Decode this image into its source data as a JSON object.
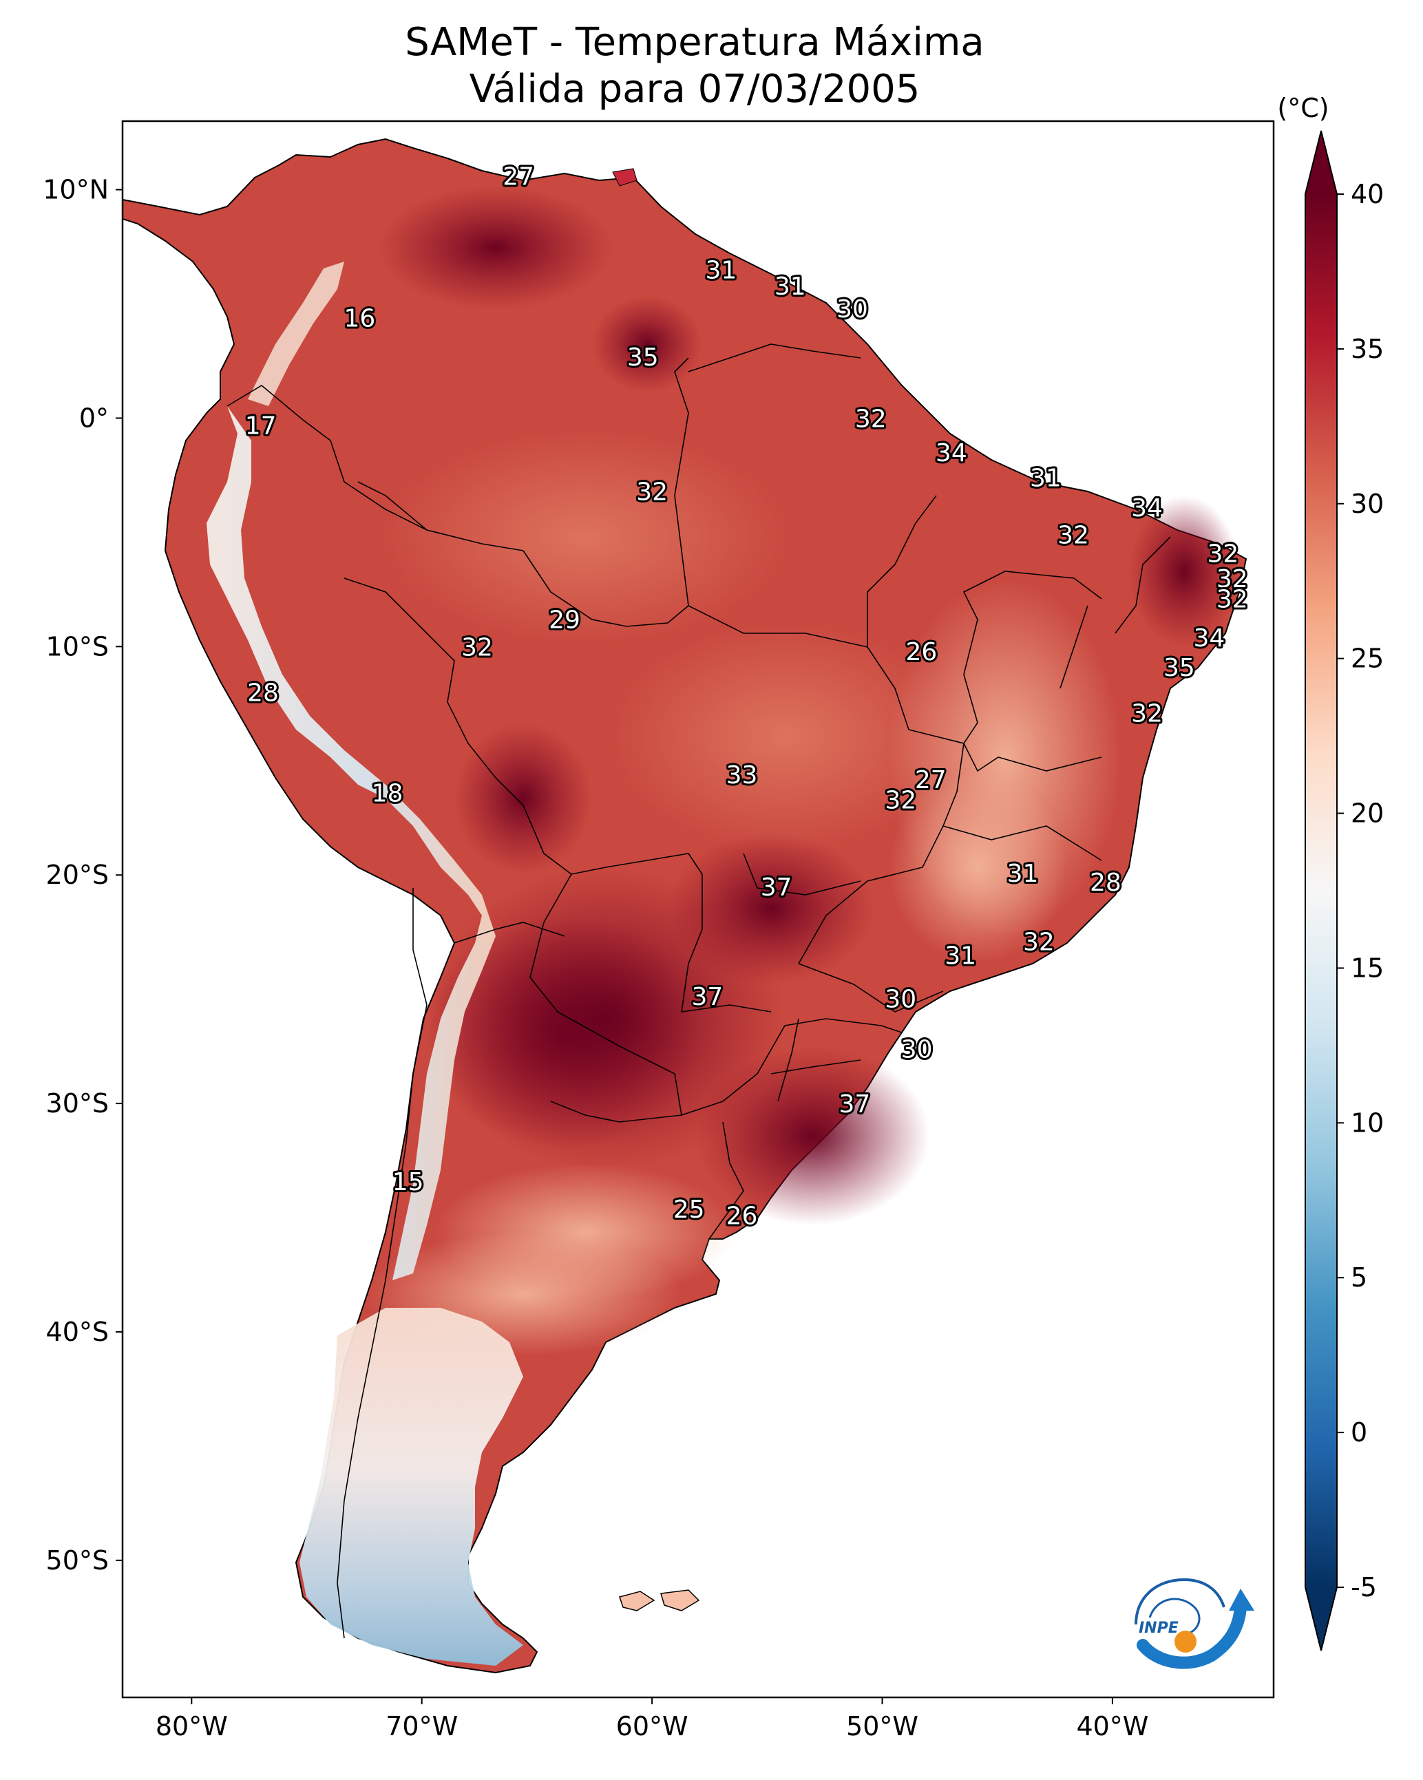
{
  "title": {
    "line1": "SAMeT - Temperatura Máxima",
    "line2": "Válida para 07/03/2005"
  },
  "axes": {
    "lon_range": [
      -83,
      -33
    ],
    "lat_range": [
      -56,
      13
    ],
    "lat_ticks": [
      {
        "value": 10,
        "label": "10°N"
      },
      {
        "value": 0,
        "label": "0°"
      },
      {
        "value": -10,
        "label": "10°S"
      },
      {
        "value": -20,
        "label": "20°S"
      },
      {
        "value": -30,
        "label": "30°S"
      },
      {
        "value": -40,
        "label": "40°S"
      },
      {
        "value": -50,
        "label": "50°S"
      }
    ],
    "lon_ticks": [
      {
        "value": -80,
        "label": "80°W"
      },
      {
        "value": -70,
        "label": "70°W"
      },
      {
        "value": -60,
        "label": "60°W"
      },
      {
        "value": -50,
        "label": "50°W"
      },
      {
        "value": -40,
        "label": "40°W"
      }
    ]
  },
  "colorbar": {
    "unit": "(°C)",
    "min": -5,
    "max": 40,
    "ticks": [
      {
        "value": 40,
        "label": "40"
      },
      {
        "value": 35,
        "label": "35"
      },
      {
        "value": 30,
        "label": "30"
      },
      {
        "value": 25,
        "label": "25"
      },
      {
        "value": 20,
        "label": "20"
      },
      {
        "value": 15,
        "label": "15"
      },
      {
        "value": 10,
        "label": "10"
      },
      {
        "value": 5,
        "label": "5"
      },
      {
        "value": 0,
        "label": "0"
      },
      {
        "value": -5,
        "label": "-5"
      }
    ],
    "colors": [
      "#053061",
      "#2166ac",
      "#4393c3",
      "#92c5de",
      "#d1e5f0",
      "#f7f7f7",
      "#fddbc7",
      "#f4a582",
      "#d6604d",
      "#b2182b",
      "#67001f"
    ]
  },
  "stations": [
    {
      "value": "27",
      "lon": -65.8,
      "lat": 10.6
    },
    {
      "value": "31",
      "lon": -57.0,
      "lat": 6.5
    },
    {
      "value": "31",
      "lon": -54.0,
      "lat": 5.8
    },
    {
      "value": "30",
      "lon": -51.3,
      "lat": 4.8
    },
    {
      "value": "16",
      "lon": -72.7,
      "lat": 4.4
    },
    {
      "value": "35",
      "lon": -60.4,
      "lat": 2.7
    },
    {
      "value": "32",
      "lon": -50.5,
      "lat": 0.0
    },
    {
      "value": "17",
      "lon": -77.0,
      "lat": -0.3
    },
    {
      "value": "34",
      "lon": -47.0,
      "lat": -1.5
    },
    {
      "value": "31",
      "lon": -42.9,
      "lat": -2.6
    },
    {
      "value": "32",
      "lon": -60.0,
      "lat": -3.2
    },
    {
      "value": "34",
      "lon": -38.5,
      "lat": -3.9
    },
    {
      "value": "32",
      "lon": -41.7,
      "lat": -5.1
    },
    {
      "value": "32",
      "lon": -35.2,
      "lat": -5.9
    },
    {
      "value": "32",
      "lon": -34.8,
      "lat": -7.0
    },
    {
      "value": "32",
      "lon": -34.8,
      "lat": -7.9
    },
    {
      "value": "29",
      "lon": -63.8,
      "lat": -8.8
    },
    {
      "value": "34",
      "lon": -35.8,
      "lat": -9.6
    },
    {
      "value": "32",
      "lon": -67.6,
      "lat": -10.0
    },
    {
      "value": "26",
      "lon": -48.3,
      "lat": -10.2
    },
    {
      "value": "35",
      "lon": -37.1,
      "lat": -10.9
    },
    {
      "value": "28",
      "lon": -76.9,
      "lat": -12.0
    },
    {
      "value": "32",
      "lon": -38.5,
      "lat": -12.9
    },
    {
      "value": "33",
      "lon": -56.1,
      "lat": -15.6
    },
    {
      "value": "27",
      "lon": -47.9,
      "lat": -15.8
    },
    {
      "value": "32",
      "lon": -49.2,
      "lat": -16.7
    },
    {
      "value": "18",
      "lon": -71.5,
      "lat": -16.4
    },
    {
      "value": "31",
      "lon": -43.9,
      "lat": -19.9
    },
    {
      "value": "28",
      "lon": -40.3,
      "lat": -20.3
    },
    {
      "value": "37",
      "lon": -54.6,
      "lat": -20.5
    },
    {
      "value": "32",
      "lon": -43.2,
      "lat": -22.9
    },
    {
      "value": "31",
      "lon": -46.6,
      "lat": -23.5
    },
    {
      "value": "37",
      "lon": -57.6,
      "lat": -25.3
    },
    {
      "value": "30",
      "lon": -49.2,
      "lat": -25.4
    },
    {
      "value": "30",
      "lon": -48.5,
      "lat": -27.6
    },
    {
      "value": "37",
      "lon": -51.2,
      "lat": -30.0
    },
    {
      "value": "15",
      "lon": -70.6,
      "lat": -33.4
    },
    {
      "value": "25",
      "lon": -58.4,
      "lat": -34.6
    },
    {
      "value": "26",
      "lon": -56.1,
      "lat": -34.9
    }
  ]
}
